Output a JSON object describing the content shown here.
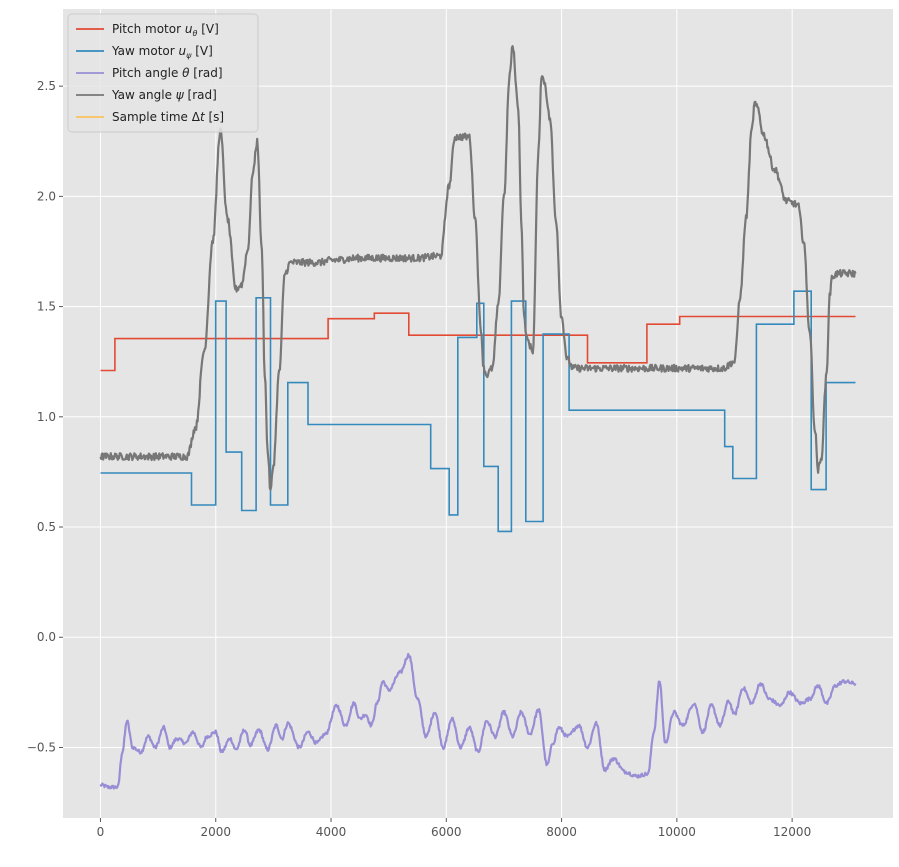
{
  "chart_data": {
    "type": "line",
    "title": "",
    "xlabel": "",
    "ylabel": "",
    "xlim": [
      -650,
      13750
    ],
    "ylim": [
      -0.82,
      2.85
    ],
    "xticks": [
      0,
      2000,
      4000,
      6000,
      8000,
      10000,
      12000
    ],
    "yticks": [
      -0.5,
      0.0,
      0.5,
      1.0,
      1.5,
      2.0,
      2.5
    ],
    "xtick_labels": [
      "0",
      "2000",
      "4000",
      "6000",
      "8000",
      "10000",
      "12000"
    ],
    "ytick_labels": [
      "−0.5",
      "0.0",
      "0.5",
      "1.0",
      "1.5",
      "2.0",
      "2.5"
    ],
    "grid": true,
    "legend_position": "top-left",
    "legend": [
      {
        "label_pre": "Pitch motor ",
        "label_math": "u",
        "label_sub": "θ",
        "label_post": " [V]",
        "color": "#E24A33"
      },
      {
        "label_pre": "Yaw motor ",
        "label_math": "u",
        "label_sub": "ψ",
        "label_post": " [V]",
        "color": "#348ABD"
      },
      {
        "label_pre": "Pitch angle ",
        "label_math": "θ",
        "label_sub": "",
        "label_post": " [rad]",
        "color": "#988ED5"
      },
      {
        "label_pre": "Yaw angle ",
        "label_math": "ψ",
        "label_sub": "",
        "label_post": " [rad]",
        "color": "#777777"
      },
      {
        "label_pre": "Sample time Δ",
        "label_math": "t",
        "label_sub": "",
        "label_post": " [s]",
        "color": "#FBC15E"
      }
    ],
    "series": [
      {
        "name": "Pitch motor uθ [V]",
        "color": "#E24A33",
        "step": true,
        "x": [
          0,
          250,
          3950,
          4750,
          5350,
          8450,
          9480,
          10050,
          13100
        ],
        "y": [
          1.21,
          1.355,
          1.445,
          1.47,
          1.37,
          1.245,
          1.42,
          1.455,
          1.455
        ]
      },
      {
        "name": "Yaw motor uψ [V]",
        "color": "#348ABD",
        "step": true,
        "x": [
          0,
          1580,
          2000,
          2180,
          2450,
          2700,
          2950,
          3250,
          3600,
          5730,
          6050,
          6200,
          6530,
          6650,
          6900,
          7130,
          7380,
          7680,
          8130,
          10830,
          10970,
          11380,
          12030,
          12330,
          12590,
          13100
        ],
        "y": [
          0.745,
          0.6,
          1.525,
          0.84,
          0.575,
          1.54,
          0.6,
          1.155,
          0.965,
          0.765,
          0.555,
          1.36,
          1.515,
          0.775,
          0.48,
          1.525,
          0.525,
          1.375,
          1.03,
          0.865,
          0.72,
          1.42,
          1.57,
          0.67,
          1.155,
          1.155
        ]
      },
      {
        "name": "Pitch angle θ [rad]",
        "color": "#988ED5",
        "noise": 0.008,
        "x": [
          0,
          150,
          300,
          380,
          460,
          560,
          700,
          830,
          950,
          1100,
          1200,
          1330,
          1480,
          1600,
          1750,
          1850,
          2000,
          2100,
          2250,
          2350,
          2500,
          2600,
          2750,
          2900,
          3050,
          3150,
          3250,
          3450,
          3600,
          3750,
          3900,
          4100,
          4250,
          4400,
          4500,
          4600,
          4700,
          4800,
          4900,
          5000,
          5200,
          5350,
          5500,
          5650,
          5800,
          5950,
          6100,
          6250,
          6400,
          6550,
          6700,
          6850,
          7000,
          7150,
          7300,
          7450,
          7600,
          7750,
          7850,
          7950,
          8100,
          8300,
          8450,
          8600,
          8750,
          8900,
          9100,
          9300,
          9500,
          9600,
          9700,
          9800,
          9950,
          10100,
          10300,
          10450,
          10600,
          10750,
          10900,
          11000,
          11150,
          11300,
          11450,
          11600,
          11800,
          11950,
          12150,
          12300,
          12450,
          12600,
          12750,
          12900,
          13100
        ],
        "y": [
          -0.67,
          -0.68,
          -0.68,
          -0.52,
          -0.38,
          -0.5,
          -0.52,
          -0.45,
          -0.5,
          -0.41,
          -0.5,
          -0.46,
          -0.48,
          -0.43,
          -0.5,
          -0.45,
          -0.43,
          -0.52,
          -0.46,
          -0.51,
          -0.42,
          -0.49,
          -0.42,
          -0.51,
          -0.4,
          -0.46,
          -0.39,
          -0.5,
          -0.43,
          -0.48,
          -0.44,
          -0.31,
          -0.4,
          -0.3,
          -0.37,
          -0.35,
          -0.4,
          -0.3,
          -0.2,
          -0.24,
          -0.16,
          -0.08,
          -0.28,
          -0.45,
          -0.34,
          -0.5,
          -0.37,
          -0.5,
          -0.41,
          -0.52,
          -0.38,
          -0.45,
          -0.34,
          -0.45,
          -0.34,
          -0.44,
          -0.33,
          -0.58,
          -0.48,
          -0.41,
          -0.45,
          -0.4,
          -0.5,
          -0.39,
          -0.6,
          -0.55,
          -0.61,
          -0.63,
          -0.62,
          -0.43,
          -0.2,
          -0.48,
          -0.34,
          -0.4,
          -0.3,
          -0.43,
          -0.31,
          -0.4,
          -0.29,
          -0.35,
          -0.23,
          -0.3,
          -0.21,
          -0.28,
          -0.31,
          -0.25,
          -0.3,
          -0.28,
          -0.22,
          -0.3,
          -0.22,
          -0.2,
          -0.21
        ]
      },
      {
        "name": "Yaw angle ψ [rad]",
        "color": "#777777",
        "noise": 0.016,
        "x": [
          0,
          1500,
          1650,
          1800,
          1950,
          2080,
          2200,
          2350,
          2450,
          2550,
          2650,
          2720,
          2800,
          2850,
          2900,
          2950,
          3000,
          3100,
          3200,
          3300,
          3500,
          3800,
          4000,
          4500,
          5500,
          5900,
          6050,
          6150,
          6300,
          6400,
          6500,
          6600,
          6650,
          6700,
          6800,
          6900,
          7000,
          7100,
          7150,
          7250,
          7300,
          7350,
          7400,
          7500,
          7600,
          7650,
          7700,
          7800,
          7900,
          8000,
          8100,
          8200,
          8300,
          9000,
          10000,
          10800,
          11000,
          11100,
          11200,
          11300,
          11350,
          11400,
          11500,
          11700,
          11900,
          12000,
          12100,
          12200,
          12300,
          12400,
          12450,
          12500,
          12600,
          12650,
          12700,
          12800,
          13100
        ],
        "y": [
          0.82,
          0.82,
          0.95,
          1.3,
          1.8,
          2.3,
          1.9,
          1.58,
          1.6,
          1.75,
          2.12,
          2.25,
          1.75,
          1.2,
          0.85,
          0.66,
          0.78,
          1.2,
          1.65,
          1.7,
          1.7,
          1.7,
          1.71,
          1.72,
          1.72,
          1.73,
          2.05,
          2.27,
          2.27,
          2.27,
          1.9,
          1.4,
          1.22,
          1.19,
          1.22,
          1.5,
          2.0,
          2.55,
          2.68,
          2.4,
          1.9,
          1.45,
          1.35,
          1.3,
          2.2,
          2.55,
          2.52,
          2.35,
          1.9,
          1.45,
          1.26,
          1.22,
          1.22,
          1.22,
          1.22,
          1.22,
          1.25,
          1.55,
          1.9,
          2.3,
          2.42,
          2.4,
          2.28,
          2.12,
          1.98,
          1.97,
          1.96,
          1.8,
          1.4,
          0.93,
          0.76,
          0.8,
          1.2,
          1.55,
          1.64,
          1.65,
          1.65
        ]
      },
      {
        "name": "Sample time Δt [s]",
        "color": "#FBC15E",
        "x": [],
        "y": []
      }
    ]
  }
}
